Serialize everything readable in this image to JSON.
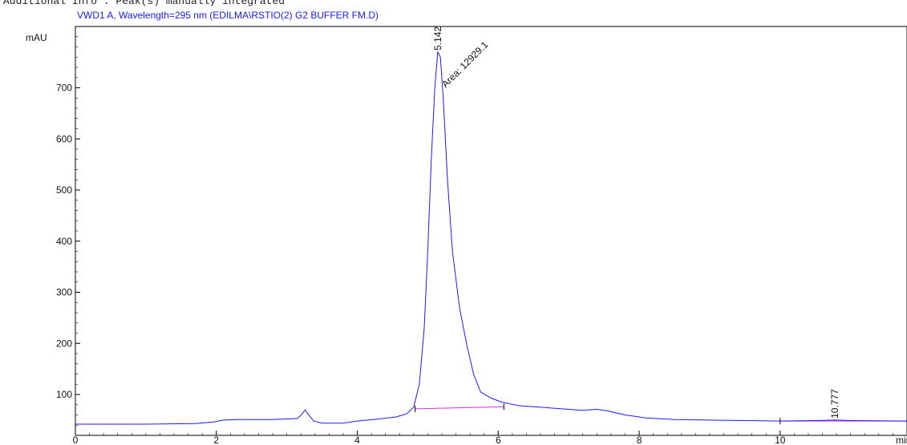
{
  "header": {
    "top_note": "Additional Info : Peak(s) manually integrated",
    "signal_title": "VWD1 A, Wavelength=295 nm (EDILMA\\RSTIO(2) G2 BUFFER FM.D)"
  },
  "colors": {
    "trace": "#1a1aff",
    "baseline": "#d62fd6",
    "axis": "#000000",
    "text": "#111111"
  },
  "chart_data": {
    "type": "line",
    "title": "VWD1 A, Wavelength=295 nm (EDILMA\\RSTIO(2) G2 BUFFER FM.D)",
    "ylabel": "mAU",
    "xlabel": "min",
    "xlim": [
      0,
      11.8
    ],
    "ylim": [
      20,
      820
    ],
    "x_ticks": [
      0,
      2,
      4,
      6,
      8,
      10
    ],
    "y_ticks": [
      100,
      200,
      300,
      400,
      500,
      600,
      700
    ],
    "grid": false,
    "series": [
      {
        "points": [
          [
            0.0,
            42
          ],
          [
            1.0,
            42
          ],
          [
            1.7,
            43
          ],
          [
            1.95,
            46
          ],
          [
            2.1,
            50
          ],
          [
            2.3,
            51
          ],
          [
            2.8,
            51
          ],
          [
            3.15,
            53
          ],
          [
            3.22,
            62
          ],
          [
            3.26,
            70
          ],
          [
            3.3,
            62
          ],
          [
            3.38,
            48
          ],
          [
            3.5,
            44
          ],
          [
            3.8,
            44
          ],
          [
            4.0,
            48
          ],
          [
            4.3,
            52
          ],
          [
            4.55,
            56
          ],
          [
            4.7,
            62
          ],
          [
            4.8,
            75
          ],
          [
            4.88,
            120
          ],
          [
            4.95,
            230
          ],
          [
            5.0,
            380
          ],
          [
            5.05,
            560
          ],
          [
            5.1,
            700
          ],
          [
            5.142,
            770
          ],
          [
            5.18,
            760
          ],
          [
            5.22,
            680
          ],
          [
            5.28,
            520
          ],
          [
            5.35,
            380
          ],
          [
            5.45,
            270
          ],
          [
            5.55,
            200
          ],
          [
            5.65,
            140
          ],
          [
            5.75,
            105
          ],
          [
            5.9,
            93
          ],
          [
            6.05,
            85
          ],
          [
            6.3,
            78
          ],
          [
            6.6,
            75
          ],
          [
            6.9,
            72
          ],
          [
            7.2,
            69
          ],
          [
            7.4,
            71
          ],
          [
            7.55,
            68
          ],
          [
            7.8,
            60
          ],
          [
            8.1,
            54
          ],
          [
            8.5,
            51
          ],
          [
            9.0,
            50
          ],
          [
            9.5,
            49
          ],
          [
            10.0,
            48
          ],
          [
            10.5,
            49
          ],
          [
            10.777,
            50
          ],
          [
            11.0,
            49
          ],
          [
            11.8,
            48
          ]
        ]
      }
    ],
    "baselines": [
      {
        "points": [
          [
            4.82,
            72
          ],
          [
            6.08,
            76
          ]
        ]
      },
      {
        "points": [
          [
            10.0,
            48
          ],
          [
            11.8,
            48
          ]
        ]
      }
    ],
    "peaks": [
      {
        "rt_label": "5.142",
        "area_label": "Area: 12929.1",
        "x": 5.142,
        "y": 770
      },
      {
        "rt_label": "10.777",
        "x": 10.777,
        "y": 50
      }
    ]
  }
}
